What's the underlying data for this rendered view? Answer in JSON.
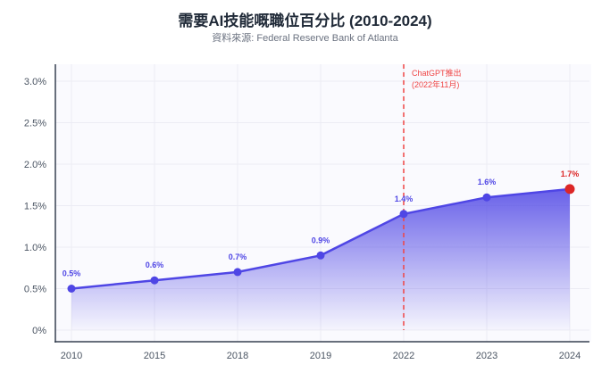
{
  "chart_data": {
    "type": "area",
    "title": "需要AI技能嘅職位百分比 (2010-2024)",
    "subtitle": "資料來源: Federal Reserve Bank of Atlanta",
    "categories": [
      "2010",
      "2015",
      "2018",
      "2019",
      "2022",
      "2023",
      "2024"
    ],
    "values": [
      0.5,
      0.6,
      0.7,
      0.9,
      1.4,
      1.6,
      1.7
    ],
    "data_labels": [
      "0.5%",
      "0.6%",
      "0.7%",
      "0.9%",
      "1.4%",
      "1.6%",
      "1.7%"
    ],
    "yticks": [
      0,
      0.5,
      1.0,
      1.5,
      2.0,
      2.5,
      3.0
    ],
    "ytick_labels": [
      "0%",
      "0.5%",
      "1.0%",
      "1.5%",
      "2.0%",
      "2.5%",
      "3.0%"
    ],
    "ylim": [
      0,
      3.2
    ],
    "xlabel": "",
    "ylabel": "",
    "grid": true,
    "annotation": {
      "x": "2022",
      "line1": "ChatGPT推出",
      "line2": "(2022年11月)"
    },
    "colors": {
      "series": "#4f46e5",
      "highlight": "#dc2626",
      "annotation": "#ef4444"
    }
  }
}
